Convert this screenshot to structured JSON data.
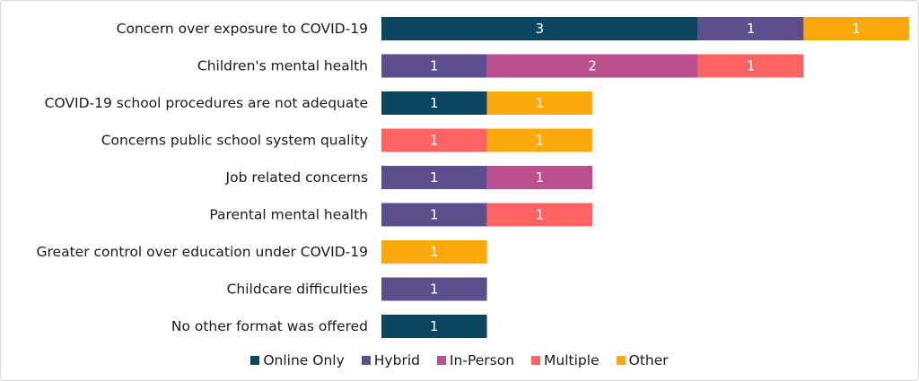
{
  "chart_data": {
    "type": "bar",
    "orientation": "horizontal",
    "stacked": true,
    "categories": [
      "Concern over exposure to COVID-19",
      "Children's mental health",
      "COVID-19 school procedures are not adequate",
      "Concerns public school system quality",
      "Job related concerns",
      "Parental mental health",
      "Greater control over education under COVID-19",
      "Childcare difficulties",
      "No other format was offered"
    ],
    "series": [
      {
        "name": "Online Only",
        "color": "#0b4560",
        "values": [
          3,
          0,
          1,
          0,
          0,
          0,
          0,
          0,
          1
        ]
      },
      {
        "name": "Hybrid",
        "color": "#5a4e8c",
        "values": [
          1,
          1,
          0,
          0,
          1,
          1,
          0,
          1,
          0
        ]
      },
      {
        "name": "In-Person",
        "color": "#bc4f8e",
        "values": [
          0,
          2,
          0,
          0,
          1,
          0,
          0,
          0,
          0
        ]
      },
      {
        "name": "Multiple",
        "color": "#fc6464",
        "values": [
          0,
          1,
          0,
          1,
          0,
          1,
          0,
          0,
          0
        ]
      },
      {
        "name": "Other",
        "color": "#fda90d",
        "values": [
          1,
          0,
          1,
          1,
          0,
          0,
          1,
          0,
          0
        ]
      }
    ],
    "xlim": [
      0,
      5
    ],
    "grid": false,
    "legend_position": "bottom"
  }
}
